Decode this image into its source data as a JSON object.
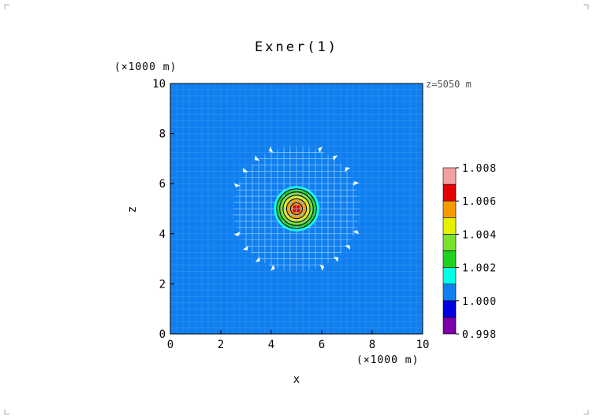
{
  "chart_data": {
    "type": "heatmap",
    "title": "Exner(1)",
    "xlabel": "x",
    "ylabel": "z",
    "x_unit": "(×1000 m)",
    "y_unit": "(×1000 m)",
    "annotation": "z=5050 m",
    "xlim": [
      0,
      10
    ],
    "ylim": [
      0,
      10
    ],
    "xticks": [
      0,
      2,
      4,
      6,
      8,
      10
    ],
    "yticks": [
      0,
      2,
      4,
      6,
      8,
      10
    ],
    "field": {
      "background": 1.0005,
      "center": [
        5,
        5
      ],
      "peak": 1.0065,
      "core_radius": 0.9
    },
    "colorbar": {
      "ticks": [
        "1.008",
        "1.006",
        "1.004",
        "1.002",
        "1.000",
        "0.998"
      ],
      "levels": [
        {
          "range": [
            0.998,
            0.999
          ],
          "color": "#7a00a8"
        },
        {
          "range": [
            0.999,
            1.0
          ],
          "color": "#0000e0"
        },
        {
          "range": [
            1.0,
            1.001
          ],
          "color": "#0f7ff0"
        },
        {
          "range": [
            1.001,
            1.002
          ],
          "color": "#00ffe6"
        },
        {
          "range": [
            1.002,
            1.003
          ],
          "color": "#1fd21f"
        },
        {
          "range": [
            1.003,
            1.004
          ],
          "color": "#7ae12e"
        },
        {
          "range": [
            1.004,
            1.005
          ],
          "color": "#e6f000"
        },
        {
          "range": [
            1.005,
            1.006
          ],
          "color": "#f59b00"
        },
        {
          "range": [
            1.006,
            1.007
          ],
          "color": "#e60000"
        },
        {
          "range": [
            1.007,
            1.008
          ],
          "color": "#f5a0a0"
        }
      ]
    }
  }
}
